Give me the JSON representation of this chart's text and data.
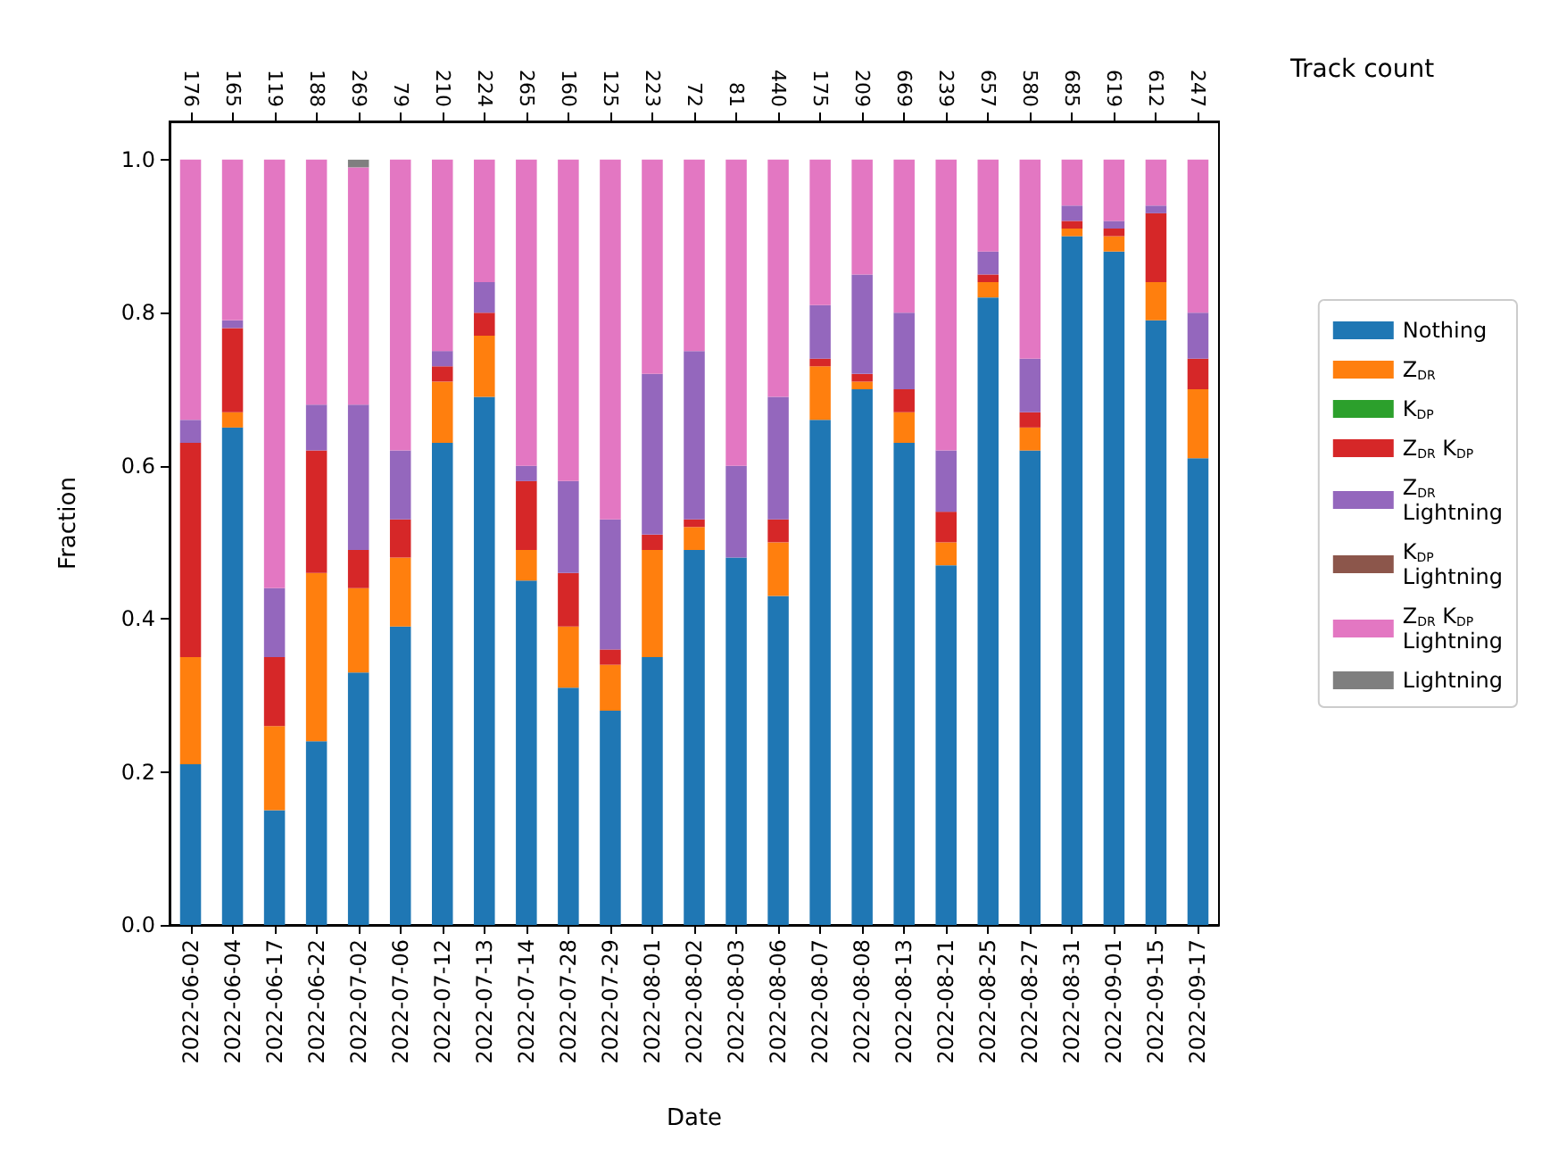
{
  "chart_data": {
    "type": "bar",
    "stacked": true,
    "xlabel": "Date",
    "ylabel": "Fraction",
    "x2label": "Track count",
    "categories": [
      "2022-06-02",
      "2022-06-04",
      "2022-06-17",
      "2022-06-22",
      "2022-07-02",
      "2022-07-06",
      "2022-07-12",
      "2022-07-13",
      "2022-07-14",
      "2022-07-28",
      "2022-07-29",
      "2022-08-01",
      "2022-08-02",
      "2022-08-03",
      "2022-08-06",
      "2022-08-07",
      "2022-08-08",
      "2022-08-13",
      "2022-08-21",
      "2022-08-25",
      "2022-08-27",
      "2022-08-31",
      "2022-09-01",
      "2022-09-15",
      "2022-09-17"
    ],
    "annotations": [
      {
        "text": "176",
        "x": "2022-06-02"
      },
      {
        "text": "165",
        "x": "2022-06-04"
      },
      {
        "text": "119",
        "x": "2022-06-17"
      },
      {
        "text": "188",
        "x": "2022-06-22"
      },
      {
        "text": "269",
        "x": "2022-07-02"
      },
      {
        "text": "79",
        "x": "2022-07-06"
      },
      {
        "text": "210",
        "x": "2022-07-12"
      },
      {
        "text": "224",
        "x": "2022-07-13"
      },
      {
        "text": "265",
        "x": "2022-07-14"
      },
      {
        "text": "160",
        "x": "2022-07-28"
      },
      {
        "text": "125",
        "x": "2022-07-29"
      },
      {
        "text": "223",
        "x": "2022-08-01"
      },
      {
        "text": "72",
        "x": "2022-08-02"
      },
      {
        "text": "81",
        "x": "2022-08-03"
      },
      {
        "text": "440",
        "x": "2022-08-06"
      },
      {
        "text": "175",
        "x": "2022-08-07"
      },
      {
        "text": "209",
        "x": "2022-08-08"
      },
      {
        "text": "669",
        "x": "2022-08-13"
      },
      {
        "text": "239",
        "x": "2022-08-21"
      },
      {
        "text": "657",
        "x": "2022-08-25"
      },
      {
        "text": "580",
        "x": "2022-08-27"
      },
      {
        "text": "685",
        "x": "2022-08-31"
      },
      {
        "text": "619",
        "x": "2022-09-01"
      },
      {
        "text": "612",
        "x": "2022-09-15"
      },
      {
        "text": "247",
        "x": "2022-09-17"
      }
    ],
    "series": [
      {
        "name": "Nothing",
        "color": "#1f77b4",
        "values": [
          0.21,
          0.65,
          0.15,
          0.24,
          0.33,
          0.39,
          0.63,
          0.69,
          0.45,
          0.31,
          0.28,
          0.35,
          0.49,
          0.48,
          0.43,
          0.66,
          0.7,
          0.63,
          0.47,
          0.82,
          0.62,
          0.9,
          0.88,
          0.79,
          0.61
        ]
      },
      {
        "name": "Z$_{DR}$",
        "color": "#ff7f0e",
        "values": [
          0.14,
          0.02,
          0.11,
          0.22,
          0.11,
          0.09,
          0.08,
          0.08,
          0.04,
          0.08,
          0.06,
          0.14,
          0.03,
          0,
          0.07,
          0.07,
          0.01,
          0.04,
          0.03,
          0.02,
          0.03,
          0.01,
          0.02,
          0.05,
          0.09
        ]
      },
      {
        "name": "K$_{DP}$",
        "color": "#2ca02c",
        "values": [
          0,
          0,
          0,
          0,
          0,
          0,
          0,
          0,
          0,
          0,
          0,
          0,
          0,
          0,
          0,
          0,
          0,
          0,
          0,
          0,
          0,
          0,
          0,
          0,
          0
        ]
      },
      {
        "name": "Z$_{DR}$ K$_{DP}$",
        "color": "#d62728",
        "values": [
          0.28,
          0.11,
          0.09,
          0.16,
          0.05,
          0.05,
          0.02,
          0.03,
          0.09,
          0.07,
          0.02,
          0.02,
          0.01,
          0,
          0.03,
          0.01,
          0.01,
          0.03,
          0.04,
          0.01,
          0.02,
          0.01,
          0.01,
          0.09,
          0.04
        ]
      },
      {
        "name": "Z$_{DR}$\nLightning",
        "color": "#9467bd",
        "values": [
          0.03,
          0.01,
          0.09,
          0.06,
          0.19,
          0.09,
          0.02,
          0.04,
          0.02,
          0.12,
          0.17,
          0.21,
          0.22,
          0.12,
          0.16,
          0.07,
          0.13,
          0.1,
          0.08,
          0.03,
          0.07,
          0.02,
          0.01,
          0.01,
          0.06
        ]
      },
      {
        "name": "K$_{DP}$\nLightning",
        "color": "#8c564b",
        "values": [
          0,
          0,
          0,
          0,
          0,
          0,
          0,
          0,
          0,
          0,
          0,
          0,
          0,
          0,
          0,
          0,
          0,
          0,
          0,
          0,
          0,
          0,
          0,
          0,
          0
        ]
      },
      {
        "name": "Z$_{DR}$ K$_{DP}$\nLightning",
        "color": "#e377c2",
        "values": [
          0.34,
          0.21,
          0.56,
          0.32,
          0.31,
          0.38,
          0.25,
          0.16,
          0.4,
          0.42,
          0.47,
          0.28,
          0.25,
          0.4,
          0.31,
          0.19,
          0.15,
          0.2,
          0.38,
          0.12,
          0.26,
          0.06,
          0.08,
          0.06,
          0.2
        ]
      },
      {
        "name": "Lightning",
        "color": "#7f7f7f",
        "values": [
          0,
          0,
          0,
          0,
          0.01,
          0,
          0,
          0,
          0,
          0,
          0,
          0,
          0,
          0,
          0,
          0,
          0,
          0,
          0,
          0,
          0,
          0,
          0,
          0,
          0
        ]
      }
    ],
    "ylim": [
      0,
      1.05
    ],
    "yticks": [
      {
        "value": 0,
        "label": "0.0"
      },
      {
        "value": 0.2,
        "label": "0.2"
      },
      {
        "value": 0.4,
        "label": "0.4"
      },
      {
        "value": 0.6,
        "label": "0.6"
      },
      {
        "value": 0.8,
        "label": "0.8"
      },
      {
        "value": 1,
        "label": "1.0"
      }
    ],
    "legend": "right"
  }
}
